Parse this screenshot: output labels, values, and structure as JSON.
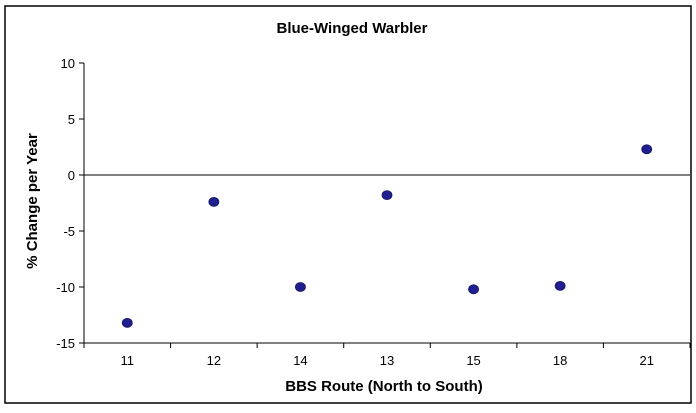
{
  "chart_data": {
    "type": "scatter",
    "title": "Blue-Winged Warbler",
    "xlabel": "BBS Route (North to South)",
    "ylabel": "% Change per Year",
    "categories": [
      "11",
      "12",
      "14",
      "13",
      "15",
      "18",
      "21"
    ],
    "series": [
      {
        "values": [
          -13.2,
          -2.4,
          -10.0,
          -1.8,
          -10.2,
          -9.9,
          2.3
        ]
      }
    ],
    "ylim": [
      -15,
      10
    ],
    "yticks": [
      10,
      5,
      0,
      -5,
      -10,
      -15
    ],
    "grid": false,
    "zero_line": true,
    "legend": "none",
    "colors": {
      "marker": "#1f1f8f",
      "axis": "#000000",
      "background": "#ffffff"
    }
  }
}
